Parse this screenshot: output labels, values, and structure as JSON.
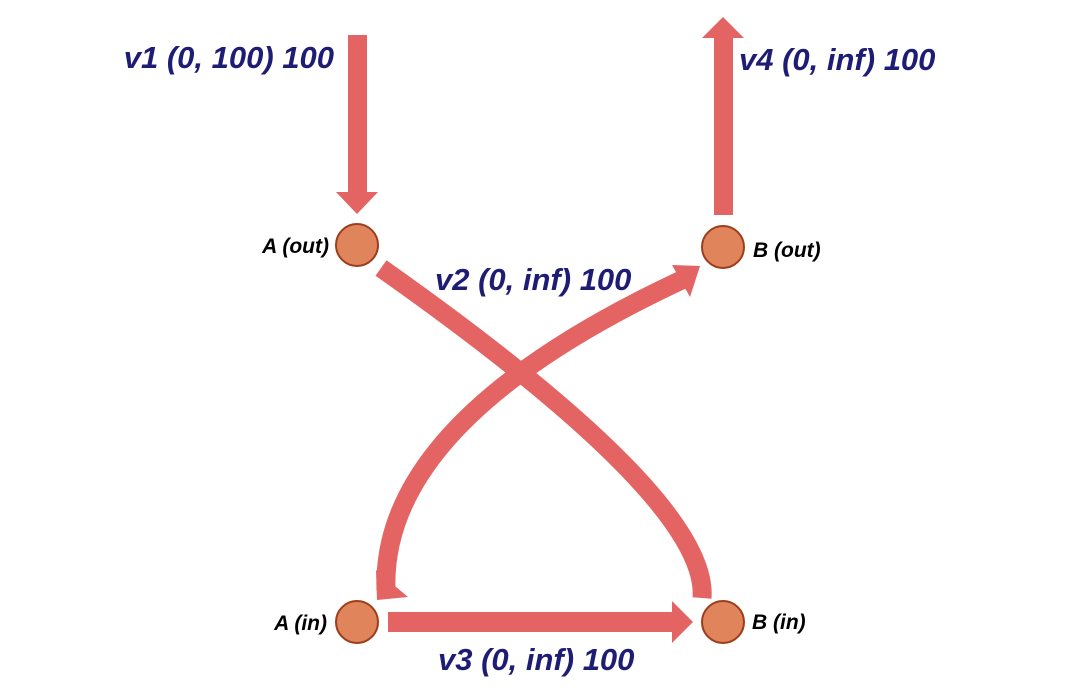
{
  "colors": {
    "edge": "#e46464",
    "node_fill": "#e0855b",
    "node_stroke": "#9c3d1b",
    "edge_label": "#1f1d73",
    "node_label": "#000000",
    "background": "#ffffff"
  },
  "nodes": [
    {
      "id": "a_out",
      "label": "A (out)"
    },
    {
      "id": "b_out",
      "label": "B (out)"
    },
    {
      "id": "a_in",
      "label": "A (in)"
    },
    {
      "id": "b_in",
      "label": "B (in)"
    }
  ],
  "edges": [
    {
      "id": "v1",
      "label": "v1 (0, 100) 100",
      "from": "source",
      "to": "a_out"
    },
    {
      "id": "v2",
      "label": "v2 (0, inf) 100",
      "from": "a_in",
      "to": "b_out"
    },
    {
      "id": "v3",
      "label": "v3 (0, inf) 100",
      "from": "a_in",
      "to": "b_in"
    },
    {
      "id": "v4",
      "label": "v4 (0, inf) 100",
      "from": "b_out",
      "to": "sink"
    }
  ]
}
